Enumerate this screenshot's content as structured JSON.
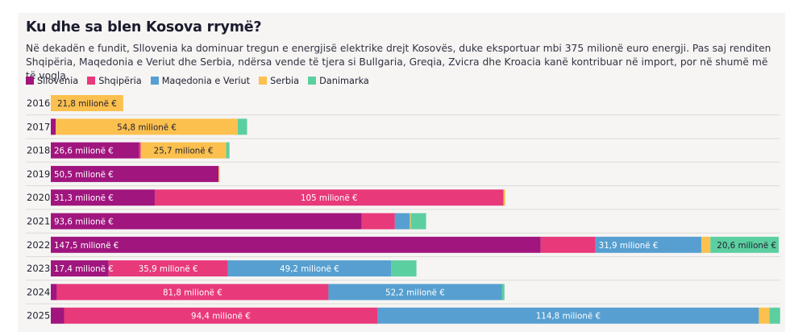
{
  "title": "Ku dhe sa blen Kosova rrymë?",
  "subtitle": "Në dekadën e fundit, Sllovenia ka dominuar tregun e energjisë elektrike drejt Kosovës, duke eksportuar mbi 375 milionë euro energji. Pas saj renditen Shqipëria, Maqedonia e Veriut dhe Serbia, ndërsa vende të tjera si Bullgaria, Greqia, Zvicra dhe Kroacia kanë kontribuar në import, por në shumë më të vogla.",
  "chart_data": {
    "type": "bar",
    "orientation": "horizontal",
    "stacked": true,
    "unit": "milionë €",
    "legend_placement": "top-left",
    "categories": [
      "2016",
      "2017",
      "2018",
      "2019",
      "2020",
      "2021",
      "2022",
      "2023",
      "2024",
      "2025"
    ],
    "series": [
      {
        "name": "Sllovenia",
        "color": "#a0157e",
        "values": [
          0,
          1.5,
          26.6,
          50.5,
          31.3,
          93.6,
          147.5,
          17.4,
          1.8,
          4.0
        ]
      },
      {
        "name": "Shqipëria",
        "color": "#e8397a",
        "values": [
          0,
          0,
          0.5,
          0,
          105,
          10.0,
          16.5,
          35.9,
          81.8,
          94.4
        ]
      },
      {
        "name": "Maqedonia e Veriut",
        "color": "#569fd0",
        "values": [
          0,
          0,
          0,
          0,
          0,
          4.5,
          31.9,
          49.2,
          52.2,
          114.8
        ]
      },
      {
        "name": "Serbia",
        "color": "#fcc04e",
        "values": [
          21.8,
          54.8,
          25.7,
          0.4,
          0.5,
          0.3,
          2.7,
          0,
          0,
          3.2
        ]
      },
      {
        "name": "Danimarka",
        "color": "#5ccfa1",
        "values": [
          0,
          2.8,
          1.0,
          0,
          0,
          4.6,
          20.6,
          7.6,
          0.8,
          3.2
        ]
      }
    ],
    "data_labels": [
      {
        "year": "2016",
        "series": "Serbia",
        "text": "21,8 milionë €"
      },
      {
        "year": "2017",
        "series": "Serbia",
        "text": "54,8 milionë €"
      },
      {
        "year": "2018",
        "series": "Sllovenia",
        "text": "26,6 milionë €"
      },
      {
        "year": "2018",
        "series": "Serbia",
        "text": "25,7 milionë €"
      },
      {
        "year": "2019",
        "series": "Sllovenia",
        "text": "50,5 milionë €"
      },
      {
        "year": "2020",
        "series": "Sllovenia",
        "text": "31,3 milionë €"
      },
      {
        "year": "2020",
        "series": "Shqipëria",
        "text": "105 milionë €"
      },
      {
        "year": "2021",
        "series": "Sllovenia",
        "text": "93,6 milionë €"
      },
      {
        "year": "2022",
        "series": "Sllovenia",
        "text": "147,5 milionë €"
      },
      {
        "year": "2022",
        "series": "Maqedonia e Veriut",
        "text": "31,9 milionë €"
      },
      {
        "year": "2022",
        "series": "Danimarka",
        "text": "20,6 milionë €"
      },
      {
        "year": "2023",
        "series": "Sllovenia",
        "text": "17,4 milionë €"
      },
      {
        "year": "2023",
        "series": "Shqipëria",
        "text": "35,9 milionë €"
      },
      {
        "year": "2023",
        "series": "Maqedonia e Veriut",
        "text": "49,2 milionë €"
      },
      {
        "year": "2024",
        "series": "Shqipëria",
        "text": "81,8 milionë €"
      },
      {
        "year": "2024",
        "series": "Maqedonia e Veriut",
        "text": "52,2 milionë €"
      },
      {
        "year": "2025",
        "series": "Shqipëria",
        "text": "94,4 milionë €"
      },
      {
        "year": "2025",
        "series": "Maqedonia e Veriut",
        "text": "114,8 milionë €"
      }
    ],
    "grid": false
  }
}
